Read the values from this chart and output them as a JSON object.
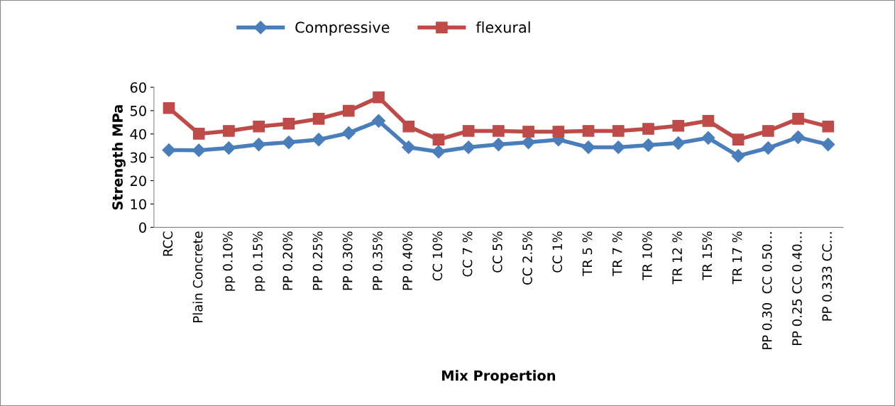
{
  "chart_data": {
    "type": "line",
    "xlabel": "Mix Propertion",
    "ylabel": "Strength MPa",
    "categories": [
      "RCC",
      "Plain Concrete",
      "pp 0.10%",
      "pp 0.15%",
      "PP 0.20%",
      "PP 0.25%",
      "PP 0.30%",
      "PP 0.35%",
      "PP 0.40%",
      "CC 10%",
      "CC 7 %",
      "CC 5%",
      "CC 2.5%",
      "CC 1%",
      "TR 5 %",
      "TR 7 %",
      "TR 10%",
      "TR 12 %",
      "TR 15%",
      "TR 17 %",
      "PP 0.30  CC 0.50…",
      "PP 0.25 CC 0.40…",
      "PP 0.333 CC…"
    ],
    "series": [
      {
        "name": "Compressive",
        "color": "#4a7ebb",
        "marker": "diamond",
        "values": [
          33.1,
          33.0,
          34.0,
          35.5,
          36.4,
          37.6,
          40.4,
          45.6,
          34.3,
          32.4,
          34.3,
          35.5,
          36.4,
          37.6,
          34.3,
          34.3,
          35.2,
          36.1,
          38.3,
          30.6,
          34.0,
          38.6,
          35.5
        ]
      },
      {
        "name": "flexural",
        "color": "#be4b48",
        "marker": "square",
        "values": [
          51.1,
          40.1,
          41.3,
          43.2,
          44.4,
          46.5,
          49.9,
          55.7,
          43.2,
          37.6,
          41.3,
          41.3,
          41.0,
          41.0,
          41.3,
          41.3,
          42.2,
          43.5,
          45.6,
          37.6,
          41.3,
          46.5,
          43.2
        ]
      }
    ],
    "ylim": [
      0,
      60
    ],
    "yticks": [
      0,
      10,
      20,
      30,
      40,
      50,
      60
    ],
    "grid": false,
    "legend": "top",
    "line_style": "solid"
  }
}
